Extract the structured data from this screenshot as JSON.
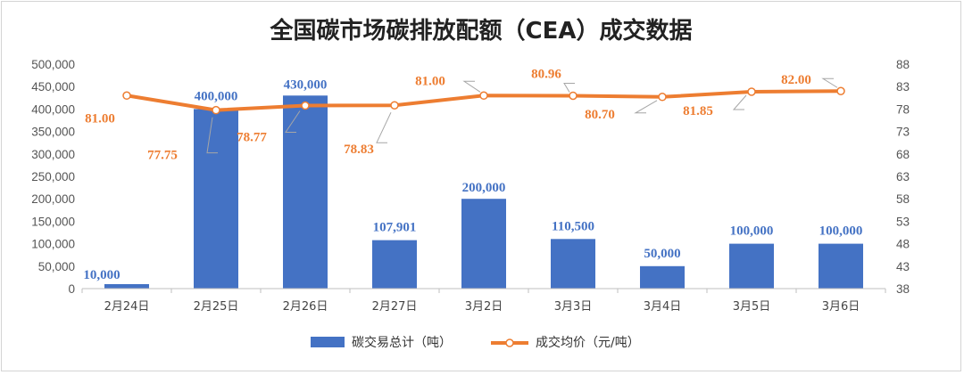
{
  "chart_data": {
    "type": "bar",
    "title": "全国碳市场碳排放配额（CEA）成交数据",
    "categories": [
      "2月24日",
      "2月25日",
      "2月26日",
      "2月27日",
      "3月2日",
      "3月3日",
      "3月4日",
      "3月5日",
      "3月6日"
    ],
    "series": [
      {
        "name": "碳交易总计（吨）",
        "type": "bar",
        "axis": "left",
        "color": "#4472c4",
        "values": [
          10000,
          400000,
          430000,
          107901,
          200000,
          110500,
          50000,
          100000,
          100000
        ],
        "labels": [
          "10,000",
          "400,000",
          "430,000",
          "107,901",
          "200,000",
          "110,500",
          "50,000",
          "100,000",
          "100,000"
        ]
      },
      {
        "name": "成交均价（元/吨）",
        "type": "line",
        "axis": "right",
        "color": "#ed7d31",
        "values": [
          81.0,
          77.75,
          78.77,
          78.83,
          81.0,
          80.96,
          80.7,
          81.85,
          82.0
        ],
        "labels": [
          "81.00",
          "77.75",
          "78.77",
          "78.83",
          "81.00",
          "80.96",
          "80.70",
          "81.85",
          "82.00"
        ]
      }
    ],
    "y_left": {
      "ylim": [
        0,
        500000
      ],
      "ticks": [
        "0",
        "50,000",
        "100,000",
        "150,000",
        "200,000",
        "250,000",
        "300,000",
        "350,000",
        "400,000",
        "450,000",
        "500,000"
      ]
    },
    "y_right": {
      "ylim": [
        38,
        88
      ],
      "ticks": [
        "38",
        "43",
        "48",
        "53",
        "58",
        "63",
        "68",
        "73",
        "78",
        "83",
        "88"
      ]
    },
    "grid": false,
    "legend": "bottom"
  }
}
